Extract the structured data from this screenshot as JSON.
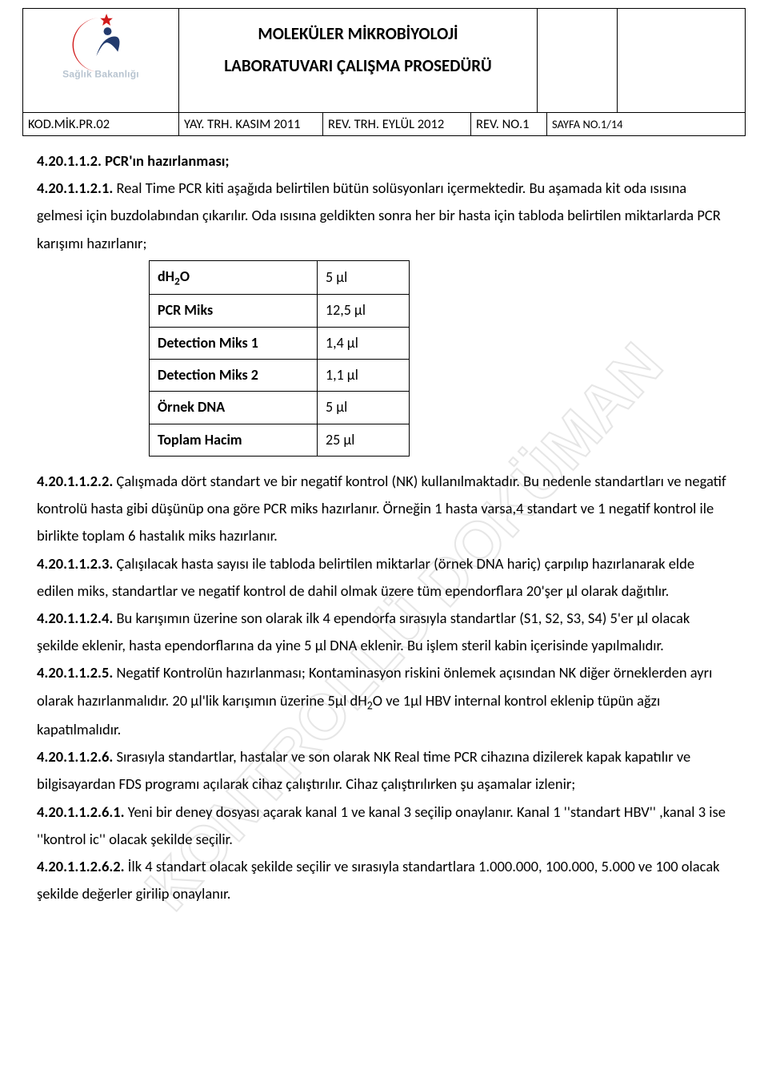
{
  "header": {
    "title_line1": "MOLEKÜLER MİKROBİYOLOJİ",
    "title_line2": "LABORATUVARI  ÇALIŞMA PROSEDÜRÜ",
    "logo_text": "Sağlık Bakanlığı",
    "info": {
      "kod": "KOD.MİK.PR.02",
      "yay": "YAY. TRH. KASIM 2011",
      "rev_trh": "REV. TRH. EYLÜL 2012",
      "rev_no": "REV. NO.1",
      "sayfa": "SAYFA NO.1/14"
    }
  },
  "pcr_table": {
    "rows": [
      {
        "label_html": "dH<span class=\"sub\">2</span>O",
        "value": "5 μl"
      },
      {
        "label_html": "PCR Miks",
        "value": "12,5 μl"
      },
      {
        "label_html": "Detection Miks 1",
        "value": "1,4 μl"
      },
      {
        "label_html": "Detection Miks 2",
        "value": "1,1 μl"
      },
      {
        "label_html": "Örnek DNA",
        "value": "5 μl"
      },
      {
        "label_html": "Toplam Hacim",
        "value": "25 μl"
      }
    ]
  },
  "body": {
    "p1_head": "4.20.1.1.2. PCR'ın hazırlanması;",
    "p2_head": "4.20.1.1.2.1.",
    "p2": " Real Time PCR kiti aşağıda belirtilen bütün solüsyonları içermektedir. Bu aşamada kit oda ısısına gelmesi için buzdolabından çıkarılır. Oda ısısına geldikten sonra her bir hasta için tabloda belirtilen miktarlarda PCR karışımı hazırlanır;",
    "p3_head": "4.20.1.1.2.2.",
    "p3": " Çalışmada dört standart ve bir negatif kontrol (NK) kullanılmaktadır. Bu nedenle standartları ve negatif kontrolü hasta gibi düşünüp ona göre PCR miks hazırlanır. Örneğin 1 hasta varsa,4 standart ve 1 negatif kontrol ile birlikte toplam 6 hastalık miks hazırlanır.",
    "p4_head": "4.20.1.1.2.3.",
    "p4": " Çalışılacak hasta sayısı ile tabloda belirtilen miktarlar (örnek DNA hariç) çarpılıp hazırlanarak elde edilen miks, standartlar ve negatif kontrol de dahil olmak üzere tüm ependorflara 20'şer μl olarak dağıtılır.",
    "p5_head": "4.20.1.1.2.4.",
    "p5": "  Bu karışımın üzerine son olarak ilk 4 ependorfa sırasıyla standartlar (S1, S2, S3, S4) 5'er μl olacak şekilde eklenir, hasta ependorflarına da yine 5 μl DNA eklenir. Bu işlem steril kabin içerisinde yapılmalıdır.",
    "p6_head": "4.20.1.1.2.5.",
    "p6a": " Negatif Kontrolün hazırlanması; Kontaminasyon riskini önlemek açısından NK diğer örneklerden ayrı olarak hazırlanmalıdır. 20 μl'lik karışımın üzerine 5μl dH",
    "p6b": "O ve 1μl HBV internal kontrol eklenip tüpün ağzı kapatılmalıdır.",
    "p7_head": "4.20.1.1.2.6.",
    "p7": " Sırasıyla standartlar, hastalar ve son olarak NK  Real time PCR cihazına dizilerek kapak kapatılır ve bilgisayardan FDS programı açılarak cihaz çalıştırılır. Cihaz çalıştırılırken şu aşamalar izlenir;",
    "p8_head": "4.20.1.1.2.6.1.",
    "p8": " Yeni bir deney dosyası açarak kanal 1 ve kanal 3  seçilip onaylanır. Kanal 1 ''standart HBV'' ,kanal 3 ise ''kontrol ic'' olacak şekilde seçilir.",
    "p9_head": "4.20.1.1.2.6.2.",
    "p9": " İlk 4 standart olacak şekilde seçilir ve sırasıyla standartlara 1.000.000, 100.000, 5.000 ve 100 olacak şekilde değerler girilip onaylanır."
  },
  "watermark_text": "KONTROLLÜ DOKÜMAN",
  "colors": {
    "logo_red": "#d11a1a",
    "logo_navy": "#233b6d",
    "logo_grey": "#b8c4d0",
    "watermark_grey": "#efefef"
  }
}
